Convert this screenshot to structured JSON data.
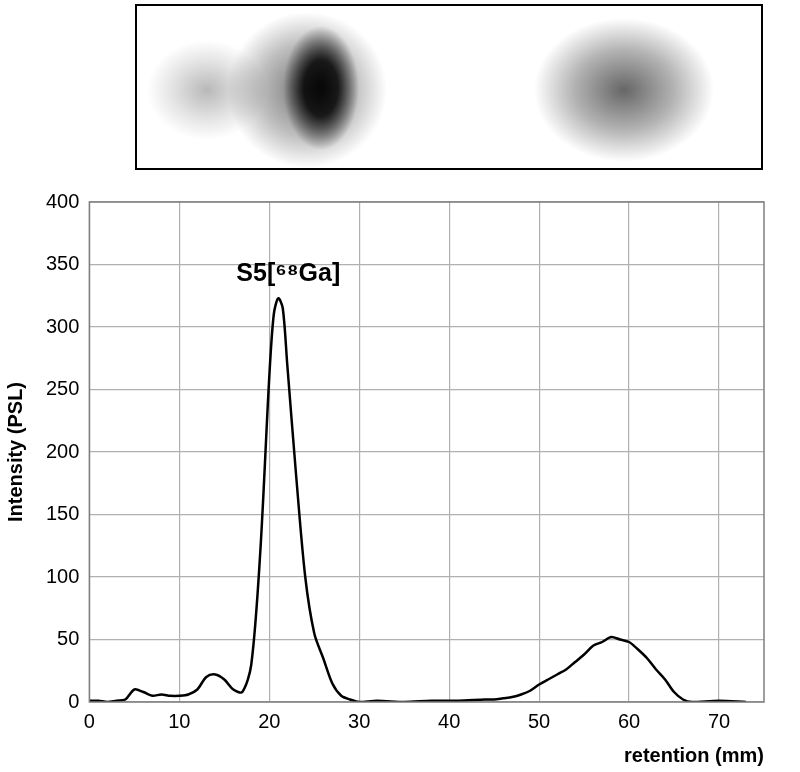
{
  "chart_data": {
    "type": "line",
    "annotation": "S5[⁶⁸Ga]",
    "x_label": "retention (mm)",
    "y_label": "Intensity (PSL)",
    "x": [
      0,
      1,
      2,
      3,
      4,
      5,
      6,
      7,
      8,
      9,
      10,
      11,
      12,
      13,
      14,
      15,
      16,
      17,
      18,
      19,
      20,
      20.5,
      21,
      21.5,
      22,
      23,
      24,
      25,
      26,
      27,
      28,
      29,
      30,
      32,
      35,
      38,
      41,
      44,
      45,
      46,
      47,
      48,
      49,
      50,
      51,
      52,
      53,
      54,
      55,
      56,
      57,
      58,
      59,
      60,
      61,
      62,
      63,
      64,
      65,
      66,
      67,
      70,
      73
    ],
    "series": [
      {
        "name": "S5",
        "color": "#000000",
        "values": [
          1,
          1,
          0,
          1,
          2,
          10,
          8,
          5,
          6,
          5,
          5,
          6,
          10,
          20,
          22,
          18,
          10,
          8,
          30,
          120,
          260,
          310,
          323,
          315,
          270,
          180,
          100,
          55,
          35,
          15,
          5,
          2,
          0,
          1,
          0,
          1,
          1,
          2,
          2,
          3,
          4,
          6,
          9,
          14,
          18,
          22,
          26,
          32,
          38,
          45,
          48,
          52,
          50,
          48,
          42,
          35,
          26,
          18,
          8,
          2,
          0,
          1,
          0
        ]
      }
    ],
    "xlim": [
      0,
      75
    ],
    "xticks": [
      0,
      10,
      20,
      30,
      40,
      50,
      60,
      70
    ],
    "ylim": [
      0,
      400
    ],
    "yticks": [
      0,
      50,
      100,
      150,
      200,
      250,
      300,
      350,
      400
    ],
    "grid": true
  }
}
